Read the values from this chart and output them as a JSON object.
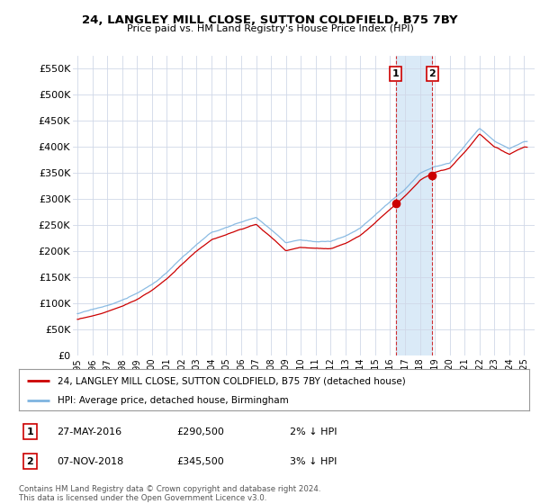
{
  "title": "24, LANGLEY MILL CLOSE, SUTTON COLDFIELD, B75 7BY",
  "subtitle": "Price paid vs. HM Land Registry's House Price Index (HPI)",
  "ylim": [
    0,
    575000
  ],
  "yticks": [
    0,
    50000,
    100000,
    150000,
    200000,
    250000,
    300000,
    350000,
    400000,
    450000,
    500000,
    550000
  ],
  "ytick_labels": [
    "£0",
    "£50K",
    "£100K",
    "£150K",
    "£200K",
    "£250K",
    "£300K",
    "£350K",
    "£400K",
    "£450K",
    "£500K",
    "£550K"
  ],
  "sale1_date": 2016.38,
  "sale1_price": 290500,
  "sale2_date": 2018.84,
  "sale2_price": 345500,
  "hpi_color": "#7eb4e0",
  "price_color": "#cc0000",
  "highlight_color": "#daeaf7",
  "annotation1_date": "27-MAY-2016",
  "annotation1_price": "£290,500",
  "annotation1_hpi": "2% ↓ HPI",
  "annotation2_date": "07-NOV-2018",
  "annotation2_price": "£345,500",
  "annotation2_hpi": "3% ↓ HPI",
  "legend_line1": "24, LANGLEY MILL CLOSE, SUTTON COLDFIELD, B75 7BY (detached house)",
  "legend_line2": "HPI: Average price, detached house, Birmingham",
  "footnote": "Contains HM Land Registry data © Crown copyright and database right 2024.\nThis data is licensed under the Open Government Licence v3.0.",
  "background_color": "#ffffff",
  "plot_bg_color": "#ffffff",
  "grid_color": "#d0d8e8",
  "key_years_hpi": [
    1995,
    1996,
    1997,
    1998,
    1999,
    2000,
    2001,
    2002,
    2003,
    2004,
    2005,
    2006,
    2007,
    2008,
    2009,
    2010,
    2011,
    2012,
    2013,
    2014,
    2015,
    2016,
    2017,
    2018,
    2019,
    2020,
    2021,
    2022,
    2023,
    2024,
    2025
  ],
  "key_values_hpi": [
    80000,
    87000,
    95000,
    105000,
    118000,
    135000,
    158000,
    185000,
    210000,
    232000,
    242000,
    252000,
    262000,
    238000,
    212000,
    218000,
    215000,
    215000,
    225000,
    240000,
    265000,
    290000,
    315000,
    345000,
    360000,
    368000,
    400000,
    435000,
    410000,
    395000,
    410000
  ],
  "noise_seed": 17
}
